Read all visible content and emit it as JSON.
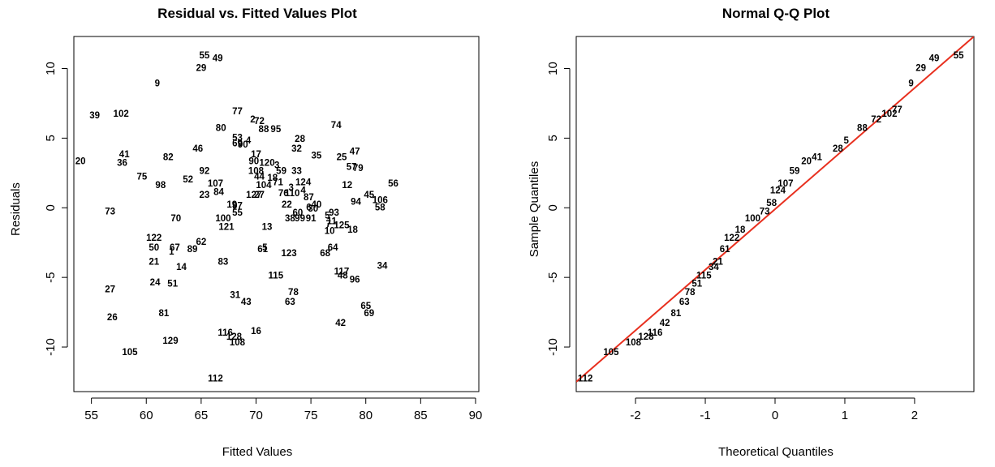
{
  "chart_data": [
    {
      "type": "scatter",
      "title": "Residual vs. Fitted Values Plot",
      "xlabel": "Fitted Values",
      "ylabel": "Residuals",
      "xlim": [
        53.4,
        90.3
      ],
      "ylim": [
        -13.2,
        12.3
      ],
      "xticks": [
        55,
        60,
        65,
        70,
        75,
        80,
        85,
        90
      ],
      "yticks": [
        -10,
        -5,
        0,
        5,
        10
      ],
      "grid": false,
      "points": [
        {
          "label": "55",
          "x": 65.3,
          "y": 10.9
        },
        {
          "label": "49",
          "x": 66.5,
          "y": 10.7
        },
        {
          "label": "29",
          "x": 65.0,
          "y": 10.0
        },
        {
          "label": "9",
          "x": 61.0,
          "y": 8.9
        },
        {
          "label": "39",
          "x": 55.3,
          "y": 6.6
        },
        {
          "label": "102",
          "x": 57.7,
          "y": 6.7
        },
        {
          "label": "77",
          "x": 68.3,
          "y": 6.9
        },
        {
          "label": "2",
          "x": 69.7,
          "y": 6.3
        },
        {
          "label": "72",
          "x": 70.3,
          "y": 6.2
        },
        {
          "label": "80",
          "x": 66.8,
          "y": 5.7
        },
        {
          "label": "88",
          "x": 70.7,
          "y": 5.6
        },
        {
          "label": "95",
          "x": 71.8,
          "y": 5.6
        },
        {
          "label": "74",
          "x": 77.3,
          "y": 5.9
        },
        {
          "label": "53",
          "x": 68.3,
          "y": 5.0
        },
        {
          "label": "4",
          "x": 69.3,
          "y": 4.8
        },
        {
          "label": "69",
          "x": 68.3,
          "y": 4.6
        },
        {
          "label": "90",
          "x": 68.8,
          "y": 4.5
        },
        {
          "label": "28",
          "x": 74.0,
          "y": 4.9
        },
        {
          "label": "32",
          "x": 73.7,
          "y": 4.2
        },
        {
          "label": "46",
          "x": 64.7,
          "y": 4.2
        },
        {
          "label": "47",
          "x": 79.0,
          "y": 4.0
        },
        {
          "label": "41",
          "x": 58.0,
          "y": 3.8
        },
        {
          "label": "82",
          "x": 62.0,
          "y": 3.6
        },
        {
          "label": "35",
          "x": 75.5,
          "y": 3.7
        },
        {
          "label": "25",
          "x": 77.8,
          "y": 3.6
        },
        {
          "label": "17",
          "x": 70.0,
          "y": 3.8
        },
        {
          "label": "20",
          "x": 54.0,
          "y": 3.3
        },
        {
          "label": "36",
          "x": 57.8,
          "y": 3.2
        },
        {
          "label": "90",
          "x": 69.8,
          "y": 3.3
        },
        {
          "label": "120",
          "x": 71.0,
          "y": 3.2
        },
        {
          "label": "3",
          "x": 71.9,
          "y": 3.0
        },
        {
          "label": "57",
          "x": 78.7,
          "y": 2.9
        },
        {
          "label": "79",
          "x": 79.3,
          "y": 2.8
        },
        {
          "label": "108",
          "x": 70.0,
          "y": 2.6
        },
        {
          "label": "59",
          "x": 72.3,
          "y": 2.6
        },
        {
          "label": "33",
          "x": 73.7,
          "y": 2.6
        },
        {
          "label": "92",
          "x": 65.3,
          "y": 2.6
        },
        {
          "label": "75",
          "x": 59.6,
          "y": 2.2
        },
        {
          "label": "52",
          "x": 63.8,
          "y": 2.0
        },
        {
          "label": "44",
          "x": 70.3,
          "y": 2.2
        },
        {
          "label": "18",
          "x": 71.5,
          "y": 2.1
        },
        {
          "label": "98",
          "x": 61.3,
          "y": 1.6
        },
        {
          "label": "107",
          "x": 66.3,
          "y": 1.7
        },
        {
          "label": "104",
          "x": 70.7,
          "y": 1.6
        },
        {
          "label": "71",
          "x": 72.0,
          "y": 1.8
        },
        {
          "label": "124",
          "x": 74.3,
          "y": 1.8
        },
        {
          "label": "12",
          "x": 78.3,
          "y": 1.6
        },
        {
          "label": "56",
          "x": 82.5,
          "y": 1.7
        },
        {
          "label": "3",
          "x": 73.2,
          "y": 1.4
        },
        {
          "label": "23",
          "x": 65.3,
          "y": 0.9
        },
        {
          "label": "84",
          "x": 66.6,
          "y": 1.1
        },
        {
          "label": "127",
          "x": 69.8,
          "y": 0.9
        },
        {
          "label": "27",
          "x": 70.3,
          "y": 0.9
        },
        {
          "label": "76",
          "x": 72.5,
          "y": 1.0
        },
        {
          "label": "110",
          "x": 73.3,
          "y": 1.0
        },
        {
          "label": "4",
          "x": 74.3,
          "y": 1.2
        },
        {
          "label": "87",
          "x": 74.8,
          "y": 0.7
        },
        {
          "label": "45",
          "x": 80.3,
          "y": 0.9
        },
        {
          "label": "106",
          "x": 81.3,
          "y": 0.5
        },
        {
          "label": "94",
          "x": 79.1,
          "y": 0.4
        },
        {
          "label": "58",
          "x": 81.3,
          "y": 0.0
        },
        {
          "label": "22",
          "x": 72.8,
          "y": 0.2
        },
        {
          "label": "19",
          "x": 67.8,
          "y": 0.2
        },
        {
          "label": "97",
          "x": 68.3,
          "y": 0.1
        },
        {
          "label": "6",
          "x": 74.8,
          "y": 0.0
        },
        {
          "label": "40",
          "x": 75.5,
          "y": 0.2
        },
        {
          "label": "30",
          "x": 75.2,
          "y": -0.1
        },
        {
          "label": "73",
          "x": 56.7,
          "y": -0.3
        },
        {
          "label": "55",
          "x": 68.3,
          "y": -0.4
        },
        {
          "label": "93",
          "x": 77.1,
          "y": -0.4
        },
        {
          "label": "5",
          "x": 76.5,
          "y": -0.6
        },
        {
          "label": "60",
          "x": 73.8,
          "y": -0.4
        },
        {
          "label": "70",
          "x": 62.7,
          "y": -0.8
        },
        {
          "label": "100",
          "x": 67.0,
          "y": -0.8
        },
        {
          "label": "38",
          "x": 73.1,
          "y": -0.8
        },
        {
          "label": "99",
          "x": 74.0,
          "y": -0.8
        },
        {
          "label": "91",
          "x": 75.0,
          "y": -0.8
        },
        {
          "label": "11",
          "x": 76.9,
          "y": -1.0
        },
        {
          "label": "7",
          "x": 76.6,
          "y": -1.2
        },
        {
          "label": "125",
          "x": 77.8,
          "y": -1.3
        },
        {
          "label": "121",
          "x": 67.3,
          "y": -1.4
        },
        {
          "label": "13",
          "x": 71.0,
          "y": -1.4
        },
        {
          "label": "18",
          "x": 78.8,
          "y": -1.6
        },
        {
          "label": "10",
          "x": 76.7,
          "y": -1.7
        },
        {
          "label": "122",
          "x": 60.7,
          "y": -2.2
        },
        {
          "label": "62",
          "x": 65.0,
          "y": -2.5
        },
        {
          "label": "50",
          "x": 60.7,
          "y": -2.9
        },
        {
          "label": "67",
          "x": 62.6,
          "y": -2.9
        },
        {
          "label": "89",
          "x": 64.2,
          "y": -3.0
        },
        {
          "label": "1",
          "x": 62.3,
          "y": -3.2
        },
        {
          "label": "61",
          "x": 70.6,
          "y": -3.0
        },
        {
          "label": "5",
          "x": 70.8,
          "y": -2.9
        },
        {
          "label": "123",
          "x": 73.0,
          "y": -3.3
        },
        {
          "label": "64",
          "x": 77.0,
          "y": -2.9
        },
        {
          "label": "68",
          "x": 76.3,
          "y": -3.3
        },
        {
          "label": "21",
          "x": 60.7,
          "y": -3.9
        },
        {
          "label": "83",
          "x": 67.0,
          "y": -3.9
        },
        {
          "label": "14",
          "x": 63.2,
          "y": -4.3
        },
        {
          "label": "34",
          "x": 81.5,
          "y": -4.2
        },
        {
          "label": "117",
          "x": 77.8,
          "y": -4.6
        },
        {
          "label": "115",
          "x": 71.8,
          "y": -4.9
        },
        {
          "label": "48",
          "x": 77.9,
          "y": -4.9
        },
        {
          "label": "96",
          "x": 79.0,
          "y": -5.2
        },
        {
          "label": "24",
          "x": 60.8,
          "y": -5.4
        },
        {
          "label": "51",
          "x": 62.4,
          "y": -5.5
        },
        {
          "label": "27",
          "x": 56.7,
          "y": -5.9
        },
        {
          "label": "78",
          "x": 73.4,
          "y": -6.1
        },
        {
          "label": "31",
          "x": 68.1,
          "y": -6.3
        },
        {
          "label": "43",
          "x": 69.1,
          "y": -6.8
        },
        {
          "label": "63",
          "x": 73.1,
          "y": -6.8
        },
        {
          "label": "65",
          "x": 80.0,
          "y": -7.1
        },
        {
          "label": "81",
          "x": 61.6,
          "y": -7.6
        },
        {
          "label": "69",
          "x": 80.3,
          "y": -7.6
        },
        {
          "label": "26",
          "x": 56.9,
          "y": -7.9
        },
        {
          "label": "42",
          "x": 77.7,
          "y": -8.3
        },
        {
          "label": "16",
          "x": 70.0,
          "y": -8.9
        },
        {
          "label": "116",
          "x": 67.2,
          "y": -9.0
        },
        {
          "label": "128",
          "x": 68.0,
          "y": -9.3
        },
        {
          "label": "108",
          "x": 68.3,
          "y": -9.7
        },
        {
          "label": "129",
          "x": 62.2,
          "y": -9.6
        },
        {
          "label": "105",
          "x": 58.5,
          "y": -10.4
        },
        {
          "label": "112",
          "x": 66.3,
          "y": -12.3
        }
      ]
    },
    {
      "type": "scatter",
      "title": "Normal Q-Q Plot",
      "xlabel": "Theoretical Quantiles",
      "ylabel": "Sample Quantiles",
      "xlim": [
        -2.85,
        2.85
      ],
      "ylim": [
        -13.2,
        12.3
      ],
      "xticks": [
        -2,
        -1,
        0,
        1,
        2
      ],
      "yticks": [
        -10,
        -5,
        0,
        5,
        10
      ],
      "grid": false,
      "reference_line": {
        "x": [
          -2.85,
          2.85
        ],
        "y": [
          -12.5,
          12.3
        ],
        "color": "#e8301f"
      },
      "points": [
        {
          "label": "55",
          "x": 2.63,
          "y": 10.9
        },
        {
          "label": "49",
          "x": 2.28,
          "y": 10.7
        },
        {
          "label": "29",
          "x": 2.09,
          "y": 10.0
        },
        {
          "label": "9",
          "x": 1.95,
          "y": 8.9
        },
        {
          "label": "77",
          "x": 1.75,
          "y": 7.0
        },
        {
          "label": "102",
          "x": 1.64,
          "y": 6.7
        },
        {
          "label": "72",
          "x": 1.45,
          "y": 6.3
        },
        {
          "label": "88",
          "x": 1.25,
          "y": 5.7
        },
        {
          "label": "5",
          "x": 1.02,
          "y": 4.8
        },
        {
          "label": "28",
          "x": 0.9,
          "y": 4.2
        },
        {
          "label": "41",
          "x": 0.6,
          "y": 3.6
        },
        {
          "label": "20",
          "x": 0.45,
          "y": 3.3
        },
        {
          "label": "59",
          "x": 0.28,
          "y": 2.6
        },
        {
          "label": "107",
          "x": 0.15,
          "y": 1.7
        },
        {
          "label": "124",
          "x": 0.04,
          "y": 1.2
        },
        {
          "label": "58",
          "x": -0.05,
          "y": 0.3
        },
        {
          "label": "73",
          "x": -0.15,
          "y": -0.3
        },
        {
          "label": "100",
          "x": -0.32,
          "y": -0.8
        },
        {
          "label": "18",
          "x": -0.5,
          "y": -1.6
        },
        {
          "label": "122",
          "x": -0.62,
          "y": -2.2
        },
        {
          "label": "61",
          "x": -0.72,
          "y": -3.0
        },
        {
          "label": "21",
          "x": -0.82,
          "y": -3.9
        },
        {
          "label": "34",
          "x": -0.88,
          "y": -4.3
        },
        {
          "label": "115",
          "x": -1.02,
          "y": -4.9
        },
        {
          "label": "51",
          "x": -1.12,
          "y": -5.5
        },
        {
          "label": "78",
          "x": -1.22,
          "y": -6.1
        },
        {
          "label": "63",
          "x": -1.3,
          "y": -6.8
        },
        {
          "label": "81",
          "x": -1.42,
          "y": -7.6
        },
        {
          "label": "42",
          "x": -1.58,
          "y": -8.3
        },
        {
          "label": "116",
          "x": -1.72,
          "y": -9.0
        },
        {
          "label": "128",
          "x": -1.85,
          "y": -9.3
        },
        {
          "label": "108",
          "x": -2.03,
          "y": -9.7
        },
        {
          "label": "105",
          "x": -2.35,
          "y": -10.4
        },
        {
          "label": "112",
          "x": -2.72,
          "y": -12.3
        }
      ]
    }
  ]
}
